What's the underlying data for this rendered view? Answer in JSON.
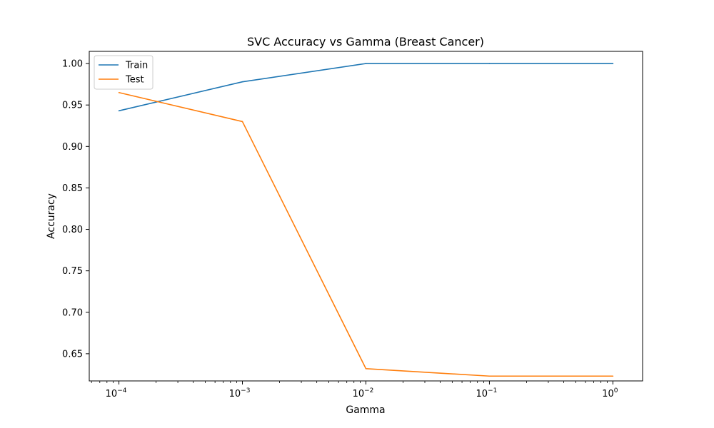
{
  "chart_data": {
    "type": "line",
    "title": "SVC Accuracy vs Gamma (Breast Cancer)",
    "xlabel": "Gamma",
    "ylabel": "Accuracy",
    "xscale": "log",
    "x": [
      0.0001,
      0.001,
      0.01,
      0.1,
      1
    ],
    "xlim": [
      5.75e-05,
      1.74
    ],
    "ylim": [
      0.6172,
      1.0147
    ],
    "x_ticks": [
      {
        "value": 0.0001,
        "base": "10",
        "exp": "−4"
      },
      {
        "value": 0.001,
        "base": "10",
        "exp": "−3"
      },
      {
        "value": 0.01,
        "base": "10",
        "exp": "−2"
      },
      {
        "value": 0.1,
        "base": "10",
        "exp": "−1"
      },
      {
        "value": 1,
        "base": "10",
        "exp": "0"
      }
    ],
    "y_ticks": [
      {
        "value": 0.65,
        "label": "0.65"
      },
      {
        "value": 0.7,
        "label": "0.70"
      },
      {
        "value": 0.75,
        "label": "0.75"
      },
      {
        "value": 0.8,
        "label": "0.80"
      },
      {
        "value": 0.85,
        "label": "0.85"
      },
      {
        "value": 0.9,
        "label": "0.90"
      },
      {
        "value": 0.95,
        "label": "0.95"
      },
      {
        "value": 1.0,
        "label": "1.00"
      }
    ],
    "series": [
      {
        "name": "Train",
        "color": "#1f77b4",
        "values": [
          0.943,
          0.978,
          1.0,
          1.0,
          1.0
        ]
      },
      {
        "name": "Test",
        "color": "#ff7f0e",
        "values": [
          0.965,
          0.93,
          0.632,
          0.623,
          0.623
        ]
      }
    ],
    "legend_position": "top-left",
    "grid": false
  }
}
